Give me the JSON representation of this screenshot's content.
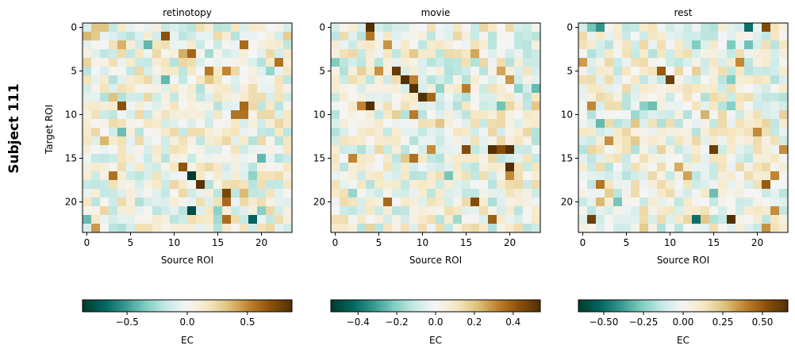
{
  "figure": {
    "suptitle": "Subject 111",
    "ylabel": "Target ROI"
  },
  "chart_data": [
    {
      "type": "heatmap",
      "title": "retinotopy",
      "xlabel": "Source ROI",
      "ylabel": "Target ROI",
      "n_rois": 24,
      "ticks": [
        0,
        5,
        10,
        15,
        20
      ],
      "colormap": "BrBG_r",
      "vmin": -0.87,
      "vmax": 0.87,
      "seed": 11,
      "strong_cells": [
        [
          17,
          12,
          -0.87
        ],
        [
          18,
          13,
          0.85
        ],
        [
          21,
          12,
          -0.8
        ],
        [
          19,
          16,
          0.75
        ],
        [
          1,
          9,
          0.7
        ],
        [
          9,
          4,
          0.7
        ],
        [
          16,
          11,
          0.68
        ],
        [
          20,
          16,
          0.6
        ],
        [
          22,
          19,
          -0.7
        ],
        [
          2,
          18,
          0.6
        ]
      ],
      "colorbar": {
        "label": "EC",
        "ticks": [
          -0.5,
          0.0,
          0.5
        ],
        "tick_labels": [
          "−0.5",
          "0.0",
          "0.5"
        ]
      }
    },
    {
      "type": "heatmap",
      "title": "movie",
      "xlabel": "Source ROI",
      "ylabel": "",
      "n_rois": 24,
      "ticks": [
        0,
        5,
        10,
        15,
        20
      ],
      "colormap": "BrBG_r",
      "vmin": -0.54,
      "vmax": 0.54,
      "seed": 23,
      "strong_cells": [
        [
          0,
          4,
          0.55
        ],
        [
          6,
          8,
          0.55
        ],
        [
          7,
          9,
          0.55
        ],
        [
          8,
          10,
          0.55
        ],
        [
          5,
          7,
          0.5
        ],
        [
          9,
          4,
          0.55
        ],
        [
          14,
          18,
          0.55
        ],
        [
          14,
          20,
          0.55
        ],
        [
          14,
          19,
          0.45
        ],
        [
          16,
          20,
          0.55
        ],
        [
          14,
          15,
          0.45
        ],
        [
          20,
          16,
          0.45
        ],
        [
          22,
          18,
          0.4
        ]
      ],
      "colorbar": {
        "label": "EC",
        "ticks": [
          -0.4,
          -0.2,
          0.0,
          0.2,
          0.4
        ],
        "tick_labels": [
          "−0.4",
          "−0.2",
          "0.0",
          "0.2",
          "0.4"
        ]
      }
    },
    {
      "type": "heatmap",
      "title": "rest",
      "xlabel": "Source ROI",
      "ylabel": "",
      "n_rois": 24,
      "ticks": [
        0,
        5,
        10,
        15,
        20
      ],
      "colormap": "BrBG_r",
      "vmin": -0.66,
      "vmax": 0.66,
      "seed": 37,
      "strong_cells": [
        [
          22,
          17,
          0.66
        ],
        [
          22,
          1,
          0.6
        ],
        [
          14,
          15,
          0.6
        ],
        [
          6,
          10,
          0.6
        ],
        [
          5,
          9,
          0.5
        ],
        [
          0,
          21,
          0.55
        ],
        [
          0,
          19,
          -0.5
        ],
        [
          0,
          2,
          -0.4
        ],
        [
          18,
          21,
          0.5
        ],
        [
          22,
          13,
          -0.5
        ]
      ],
      "colorbar": {
        "label": "EC",
        "ticks": [
          -0.5,
          -0.25,
          0.0,
          0.25,
          0.5
        ],
        "tick_labels": [
          "−0.50",
          "−0.25",
          "0.00",
          "0.25",
          "0.50"
        ]
      }
    }
  ]
}
